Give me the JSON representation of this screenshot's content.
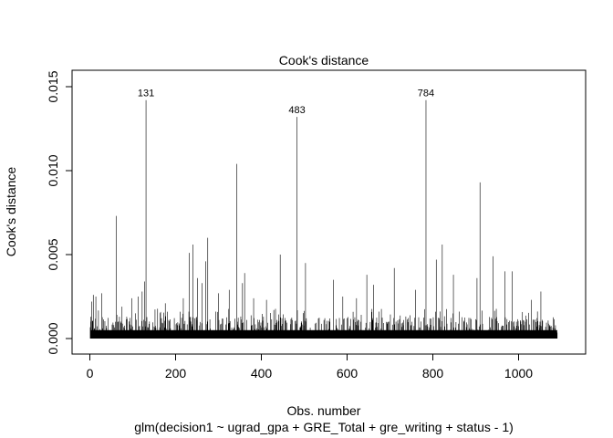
{
  "chart_data": {
    "type": "bar",
    "title": "Cook's distance",
    "xlabel": "Obs. number",
    "ylabel": "Cook's distance",
    "subtitle": "glm(decision1 ~ ugrad_gpa + GRE_Total + gre_writing + status - 1)",
    "xlim": [
      0,
      1090
    ],
    "ylim": [
      0,
      0.0155
    ],
    "x_ticks": [
      0,
      200,
      400,
      600,
      800,
      1000
    ],
    "y_ticks": [
      0.0,
      0.005,
      0.01,
      0.015
    ],
    "y_tick_labels": [
      "0.000",
      "0.005",
      "0.010",
      "0.015"
    ],
    "n_obs": 1090,
    "grid": false,
    "baseline_level": 0.0005,
    "labeled_points": [
      {
        "x": 131,
        "y": 0.0142,
        "label": "131"
      },
      {
        "x": 483,
        "y": 0.0132,
        "label": "483"
      },
      {
        "x": 784,
        "y": 0.0142,
        "label": "784"
      }
    ],
    "notable_spikes": [
      {
        "x": 4,
        "y": 0.0022
      },
      {
        "x": 8,
        "y": 0.0026
      },
      {
        "x": 14,
        "y": 0.0025
      },
      {
        "x": 28,
        "y": 0.0027
      },
      {
        "x": 62,
        "y": 0.0073
      },
      {
        "x": 75,
        "y": 0.0019
      },
      {
        "x": 98,
        "y": 0.0024
      },
      {
        "x": 113,
        "y": 0.0025
      },
      {
        "x": 122,
        "y": 0.0028
      },
      {
        "x": 128,
        "y": 0.0034
      },
      {
        "x": 176,
        "y": 0.0021
      },
      {
        "x": 218,
        "y": 0.0024
      },
      {
        "x": 232,
        "y": 0.0051
      },
      {
        "x": 240,
        "y": 0.0056
      },
      {
        "x": 251,
        "y": 0.0036
      },
      {
        "x": 262,
        "y": 0.0033
      },
      {
        "x": 270,
        "y": 0.0046
      },
      {
        "x": 275,
        "y": 0.006
      },
      {
        "x": 300,
        "y": 0.0027
      },
      {
        "x": 325,
        "y": 0.0029
      },
      {
        "x": 343,
        "y": 0.0104
      },
      {
        "x": 356,
        "y": 0.0033
      },
      {
        "x": 361,
        "y": 0.0039
      },
      {
        "x": 382,
        "y": 0.0024
      },
      {
        "x": 412,
        "y": 0.0023
      },
      {
        "x": 444,
        "y": 0.005
      },
      {
        "x": 503,
        "y": 0.0045
      },
      {
        "x": 568,
        "y": 0.0035
      },
      {
        "x": 590,
        "y": 0.0025
      },
      {
        "x": 622,
        "y": 0.0024
      },
      {
        "x": 646,
        "y": 0.0038
      },
      {
        "x": 662,
        "y": 0.0032
      },
      {
        "x": 710,
        "y": 0.0042
      },
      {
        "x": 760,
        "y": 0.0029
      },
      {
        "x": 808,
        "y": 0.0047
      },
      {
        "x": 822,
        "y": 0.0056
      },
      {
        "x": 848,
        "y": 0.0038
      },
      {
        "x": 903,
        "y": 0.0036
      },
      {
        "x": 910,
        "y": 0.0093
      },
      {
        "x": 940,
        "y": 0.0049
      },
      {
        "x": 968,
        "y": 0.004
      },
      {
        "x": 985,
        "y": 0.004
      },
      {
        "x": 1030,
        "y": 0.0023
      },
      {
        "x": 1052,
        "y": 0.0028
      }
    ]
  }
}
